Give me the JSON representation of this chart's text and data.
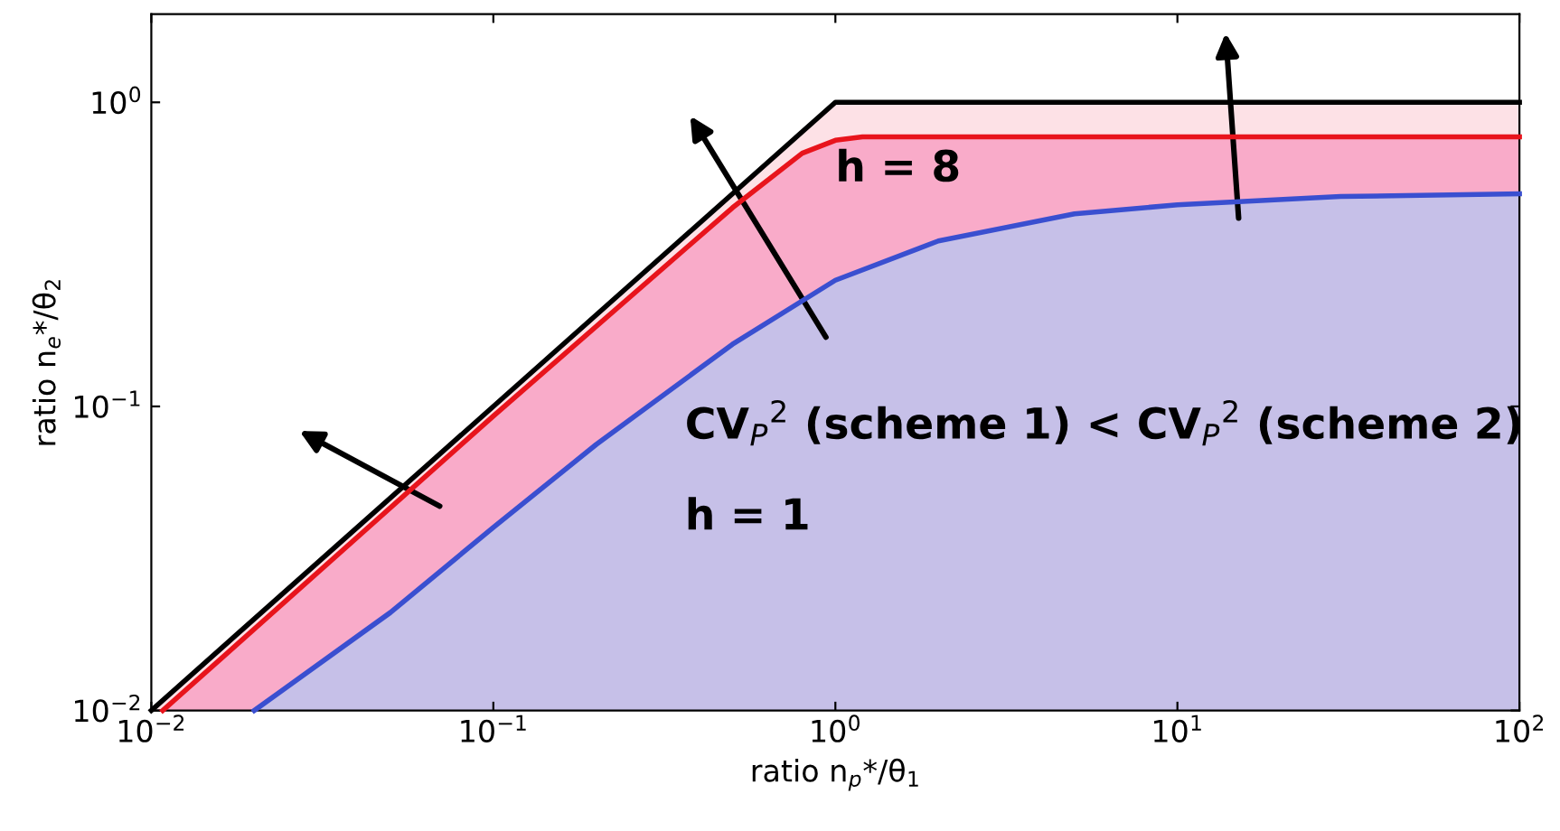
{
  "chart_data": {
    "type": "area",
    "log": "xy",
    "xlabel": "ratio n$_{p}$*/θ$_{1}$",
    "ylabel": "ratio n$_{e}$*/θ$_{2}$",
    "xlim": [
      0.01,
      100
    ],
    "ylim": [
      0.01,
      1.95
    ],
    "xticks": [
      {
        "value": 0.01,
        "label": "10$^{−2}$"
      },
      {
        "value": 0.1,
        "label": "10$^{−1}$"
      },
      {
        "value": 1,
        "label": "10$^{0}$"
      },
      {
        "value": 10,
        "label": "10$^{1}$"
      },
      {
        "value": 100,
        "label": "10$^{2}$"
      }
    ],
    "yticks": [
      {
        "value": 0.01,
        "label": "10$^{−2}$"
      },
      {
        "value": 0.1,
        "label": "10$^{−1}$"
      },
      {
        "value": 1,
        "label": "10$^{0}$"
      }
    ],
    "grid": false,
    "legend": false,
    "series": [
      {
        "color": "#000000",
        "x": [
          0.01,
          1,
          100
        ],
        "values": [
          0.01,
          1,
          1
        ]
      },
      {
        "color": "#e8141c",
        "x": [
          0.0108,
          0.1,
          0.5,
          0.8,
          1,
          1.2,
          100
        ],
        "values": [
          0.01,
          0.093,
          0.45,
          0.68,
          0.75,
          0.77,
          0.77
        ]
      },
      {
        "color": "#3a4fd0",
        "x": [
          0.02,
          0.05,
          0.1,
          0.2,
          0.5,
          1,
          2,
          5,
          10,
          30,
          100
        ],
        "values": [
          0.01,
          0.021,
          0.04,
          0.075,
          0.16,
          0.26,
          0.35,
          0.43,
          0.46,
          0.49,
          0.5
        ]
      }
    ],
    "annotations": [
      "h = 8",
      "CV$_{P}$$^{2}$ (scheme 1) < CV$_{P}$$^{2}$ (scheme 2)",
      "h = 1"
    ]
  }
}
